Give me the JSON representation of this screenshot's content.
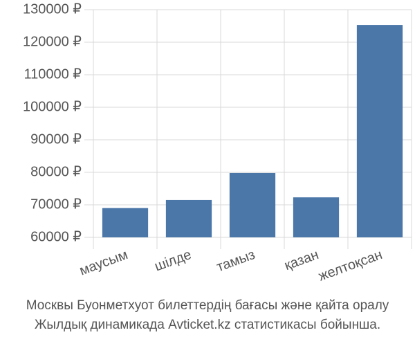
{
  "chart_data": {
    "type": "bar",
    "title": "Москвы Буонметхуот билеттердің бағасы және қайта оралу",
    "subtitle": "Жылдық динамикада Avticket.kz статистикасы бойынша.",
    "categories": [
      "маусым",
      "шілде",
      "тамыз",
      "қазан",
      "желтоқсан"
    ],
    "values": [
      69000,
      71500,
      79800,
      72300,
      125300
    ],
    "color": "#4a76a8",
    "ylim": [
      60000,
      130000
    ],
    "yticks": [
      {
        "value": 60000,
        "label": "60000 ₽"
      },
      {
        "value": 70000,
        "label": "70000 ₽"
      },
      {
        "value": 80000,
        "label": "80000 ₽"
      },
      {
        "value": 90000,
        "label": "90000 ₽"
      },
      {
        "value": 100000,
        "label": "100000 ₽"
      },
      {
        "value": 110000,
        "label": "110000 ₽"
      },
      {
        "value": 120000,
        "label": "120000 ₽"
      },
      {
        "value": 130000,
        "label": "130000 ₽"
      }
    ],
    "grid": true
  }
}
